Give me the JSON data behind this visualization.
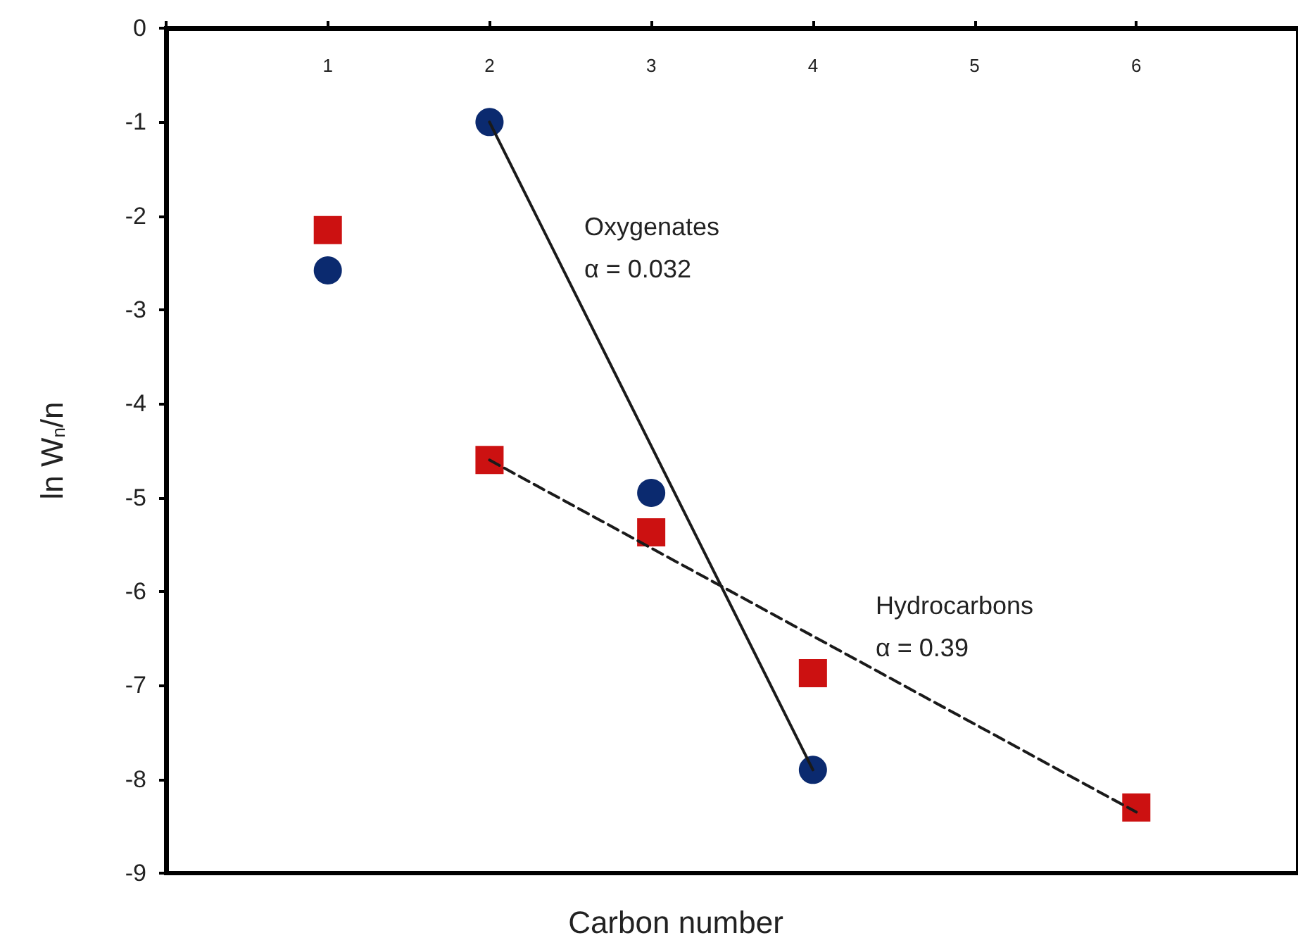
{
  "chart_data": {
    "type": "scatter",
    "xlabel": "Carbon number",
    "ylabel": "ln W$_{n}$/n",
    "xlim": [
      0,
      7
    ],
    "xticks": [
      {
        "value": 0,
        "label": null
      },
      1,
      2,
      3,
      4,
      5,
      6
    ],
    "ylim": [
      -9,
      0
    ],
    "yticks": [
      0,
      -1,
      -2,
      -3,
      -4,
      -5,
      -6,
      -7,
      -8,
      -9
    ],
    "grid": false,
    "series": [
      {
        "marker": "circle",
        "color": "#0b2a6f",
        "x": [
          1,
          2,
          3,
          4
        ],
        "values": [
          -2.58,
          -1.0,
          -4.95,
          -7.9
        ]
      },
      {
        "marker": "square",
        "color": "#cc1111",
        "x": [
          1,
          2,
          3,
          4,
          6
        ],
        "values": [
          -2.15,
          -4.6,
          -5.37,
          -6.87,
          -8.3
        ]
      },
      {
        "type": "line",
        "line_style": "solid",
        "marker": "none",
        "color": "#1a1a1a",
        "x": [
          2,
          4
        ],
        "values": [
          -1.0,
          -7.9
        ]
      },
      {
        "type": "line",
        "line_style": "dashed",
        "marker": "none",
        "color": "#1a1a1a",
        "x": [
          2,
          6
        ],
        "values": [
          -4.6,
          -8.35
        ]
      }
    ],
    "annotations": [
      "Oxygenates\nα = 0.032",
      "Hydrocarbons\nα = 0.39"
    ]
  }
}
